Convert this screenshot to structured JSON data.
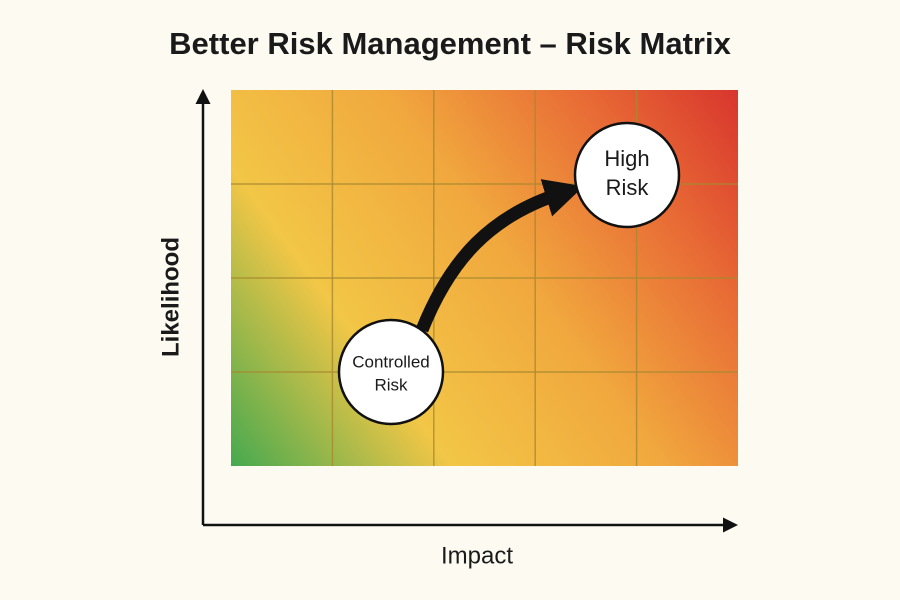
{
  "title": "Better Risk Management – Risk Matrix",
  "axes": {
    "y_label": "Likelihood",
    "x_label": "Impact"
  },
  "nodes": [
    {
      "lines": [
        "Controlled",
        "Risk"
      ]
    },
    {
      "lines": [
        "High",
        "Risk"
      ]
    }
  ]
}
